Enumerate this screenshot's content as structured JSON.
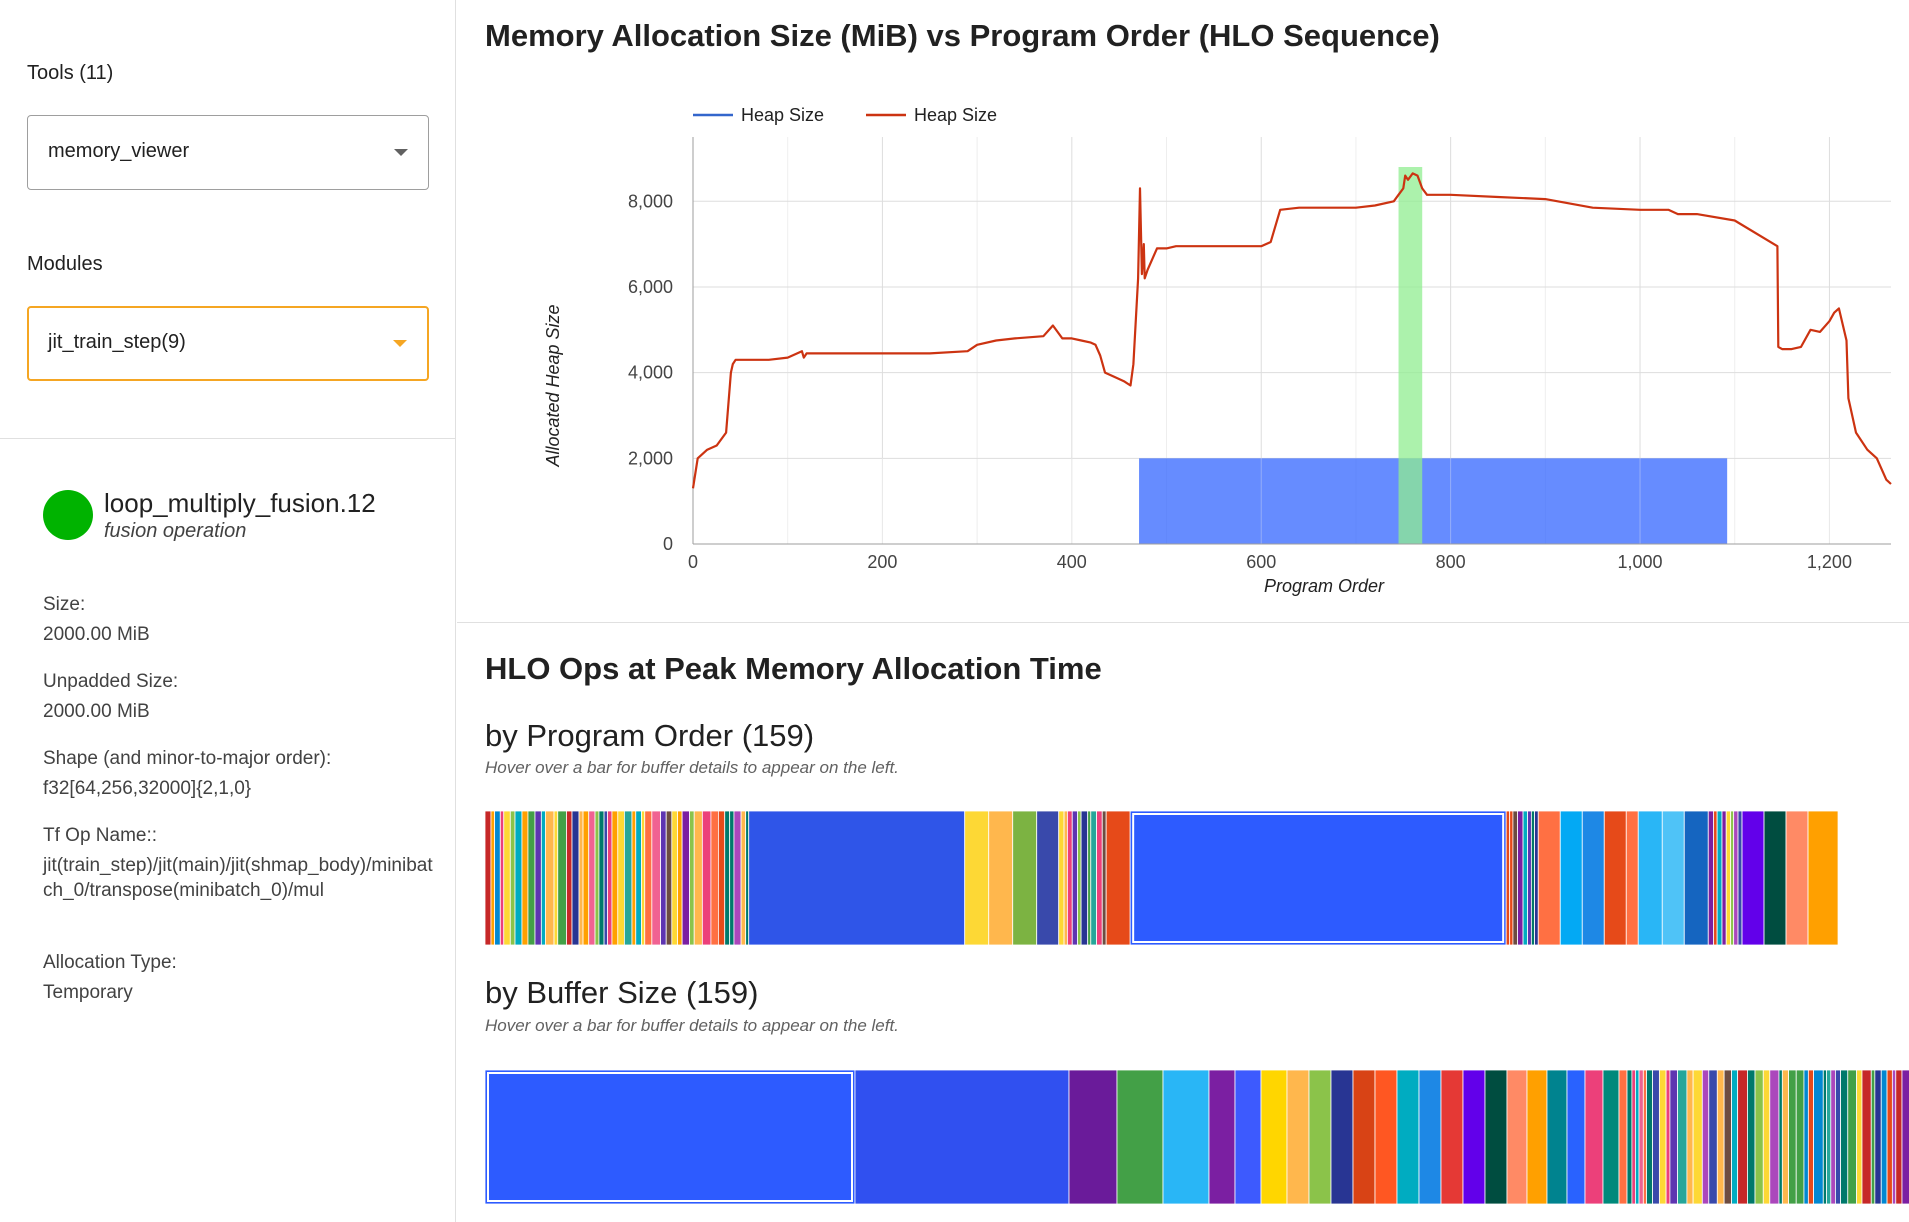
{
  "sidebar": {
    "tools_label": "Tools (11)",
    "tool_selected": "memory_viewer",
    "modules_label": "Modules",
    "module_selected": "jit_train_step(9)",
    "buffer": {
      "name": "loop_multiply_fusion.12",
      "kind": "fusion operation",
      "color": "#00b300",
      "size_label": "Size:",
      "size_value": "2000.00 MiB",
      "unpadded_label": "Unpadded Size:",
      "unpadded_value": "2000.00 MiB",
      "shape_label": "Shape (and minor-to-major order):",
      "shape_value": "f32[64,256,32000]{2,1,0}",
      "tfop_label": "Tf Op Name::",
      "tfop_value": "jit(train_step)/jit(main)/jit(shmap_body)/minibatch_0/transpose(minibatch_0)/mul",
      "alloc_label": "Allocation Type:",
      "alloc_value": "Temporary"
    }
  },
  "chart_title": "Memory Allocation Size (MiB) vs Program Order (HLO Sequence)",
  "chart_data": {
    "type": "line",
    "xlabel": "Program Order",
    "ylabel": "Allocated Heap Size",
    "xlim": [
      0,
      1265
    ],
    "ylim": [
      0,
      9500
    ],
    "xticks": [
      0,
      200,
      400,
      600,
      800,
      1000,
      1200
    ],
    "yticks": [
      0,
      2000,
      4000,
      6000,
      8000
    ],
    "xtick_labels": [
      "0",
      "200",
      "400",
      "600",
      "800",
      "1,000",
      "1,200"
    ],
    "ytick_labels": [
      "0",
      "2,000",
      "4,000",
      "6,000",
      "8,000"
    ],
    "grid": true,
    "legend": "top-left",
    "series": [
      {
        "name": "Heap Size",
        "color": "#3366cc",
        "values": []
      },
      {
        "name": "Heap Size",
        "color": "#cc3311",
        "x": [
          0,
          5,
          15,
          25,
          35,
          40,
          42,
          45,
          50,
          60,
          80,
          100,
          115,
          117,
          120,
          150,
          200,
          250,
          290,
          300,
          320,
          340,
          370,
          380,
          390,
          400,
          410,
          420,
          425,
          430,
          435,
          445,
          455,
          462,
          465,
          470,
          472,
          474,
          476,
          477,
          480,
          490,
          500,
          510,
          530,
          560,
          600,
          610,
          620,
          640,
          680,
          700,
          720,
          740,
          745,
          750,
          752,
          755,
          760,
          765,
          770,
          775,
          780,
          800,
          850,
          900,
          950,
          1000,
          1030,
          1040,
          1050,
          1060,
          1100,
          1145,
          1146,
          1150,
          1160,
          1170,
          1180,
          1190,
          1200,
          1205,
          1210,
          1218,
          1220,
          1228,
          1240,
          1250,
          1260,
          1265
        ],
        "values": [
          1300,
          2000,
          2200,
          2300,
          2600,
          4000,
          4200,
          4300,
          4300,
          4300,
          4300,
          4350,
          4500,
          4350,
          4450,
          4450,
          4450,
          4450,
          4500,
          4650,
          4750,
          4800,
          4850,
          5100,
          4800,
          4800,
          4750,
          4700,
          4650,
          4400,
          4000,
          3900,
          3800,
          3700,
          4200,
          6200,
          8300,
          6300,
          7000,
          6200,
          6400,
          6900,
          6900,
          6950,
          6950,
          6950,
          6950,
          7050,
          7800,
          7850,
          7850,
          7850,
          7900,
          8000,
          8150,
          8300,
          8600,
          8500,
          8650,
          8600,
          8300,
          8150,
          8150,
          8150,
          8100,
          8050,
          7850,
          7800,
          7800,
          7700,
          7700,
          7700,
          7550,
          6950,
          4600,
          4550,
          4550,
          4600,
          5000,
          4950,
          5200,
          5400,
          5500,
          4750,
          3400,
          2600,
          2200,
          2000,
          1500,
          1400
        ]
      }
    ],
    "annotations": [
      {
        "kind": "buffer-span",
        "x_start": 471,
        "x_end": 1092,
        "y_start": 0,
        "y_end": 2000,
        "color": "#3366ff"
      },
      {
        "kind": "peak-highlight",
        "x_start": 745,
        "x_end": 770,
        "color": "#90ee90"
      }
    ]
  },
  "peak_title": "HLO Ops at Peak Memory Allocation Time",
  "by_program": {
    "title": "by Program Order (159)",
    "hint": "Hover over a bar for buffer details to appear on the left."
  },
  "by_size": {
    "title": "by Buffer Size (159)",
    "hint": "Hover over a bar for buffer details to appear on the left."
  },
  "palette": [
    "#e64a19",
    "#00acc1",
    "#7b1fa2",
    "#43a047",
    "#ffa000",
    "#283593",
    "#f06292",
    "#00796b",
    "#fdd835",
    "#5e35b1",
    "#0288d1",
    "#c62828",
    "#ff7043",
    "#26a69a",
    "#ab47bc",
    "#8bc34a",
    "#6d4c41",
    "#ec407a",
    "#3949ab",
    "#ffb74d"
  ]
}
